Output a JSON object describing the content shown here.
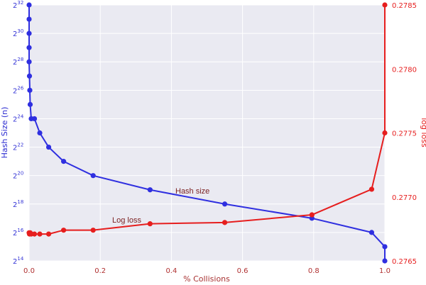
{
  "chart_data": {
    "type": "line",
    "xlabel": "% Collisions",
    "ylabel_left": "Hash Size (n)",
    "ylabel_right": "log loss",
    "xlim": [
      0.0,
      1.0
    ],
    "ylim_left_log2": [
      14,
      32
    ],
    "ylim_right": [
      0.2765,
      0.2785
    ],
    "x_ticks": [
      "0.0",
      "0.2",
      "0.4",
      "0.6",
      "0.8",
      "1.0"
    ],
    "y_left_ticks": [
      {
        "base": "2",
        "exp": "14"
      },
      {
        "base": "2",
        "exp": "16"
      },
      {
        "base": "2",
        "exp": "18"
      },
      {
        "base": "2",
        "exp": "20"
      },
      {
        "base": "2",
        "exp": "22"
      },
      {
        "base": "2",
        "exp": "24"
      },
      {
        "base": "2",
        "exp": "26"
      },
      {
        "base": "2",
        "exp": "28"
      },
      {
        "base": "2",
        "exp": "30"
      },
      {
        "base": "2",
        "exp": "32"
      }
    ],
    "y_right_ticks": [
      "0.2765",
      "0.2770",
      "0.2775",
      "0.2780",
      "0.2785"
    ],
    "grid": true,
    "series": [
      {
        "name": "Hash size",
        "color": "#2f2fe0",
        "axis": "left",
        "x": [
          0.0,
          0.0,
          0.0,
          0.0,
          0.0,
          0.001,
          0.002,
          0.003,
          0.006,
          0.015,
          0.03,
          0.055,
          0.097,
          0.18,
          0.34,
          0.55,
          0.795,
          0.963,
          1.0,
          1.0
        ],
        "y_exp": [
          32,
          31,
          30,
          29,
          28,
          27,
          26,
          25,
          24,
          24,
          23,
          22,
          21,
          20,
          19,
          18,
          17,
          16,
          15,
          14
        ]
      },
      {
        "name": "Log loss",
        "color": "#e61e1e",
        "axis": "right",
        "x": [
          0.0,
          0.001,
          0.003,
          0.006,
          0.015,
          0.03,
          0.055,
          0.097,
          0.18,
          0.34,
          0.55,
          0.795,
          0.963,
          1.0,
          1.0
        ],
        "y": [
          0.27672,
          0.27671,
          0.27672,
          0.27671,
          0.27671,
          0.27671,
          0.27671,
          0.27674,
          0.27674,
          0.27679,
          0.2768,
          0.27686,
          0.27706,
          0.2775,
          0.2785
        ]
      }
    ],
    "annotations": [
      {
        "text": "Hash size",
        "series": "Hash size"
      },
      {
        "text": "Log loss",
        "series": "Log loss"
      }
    ]
  }
}
